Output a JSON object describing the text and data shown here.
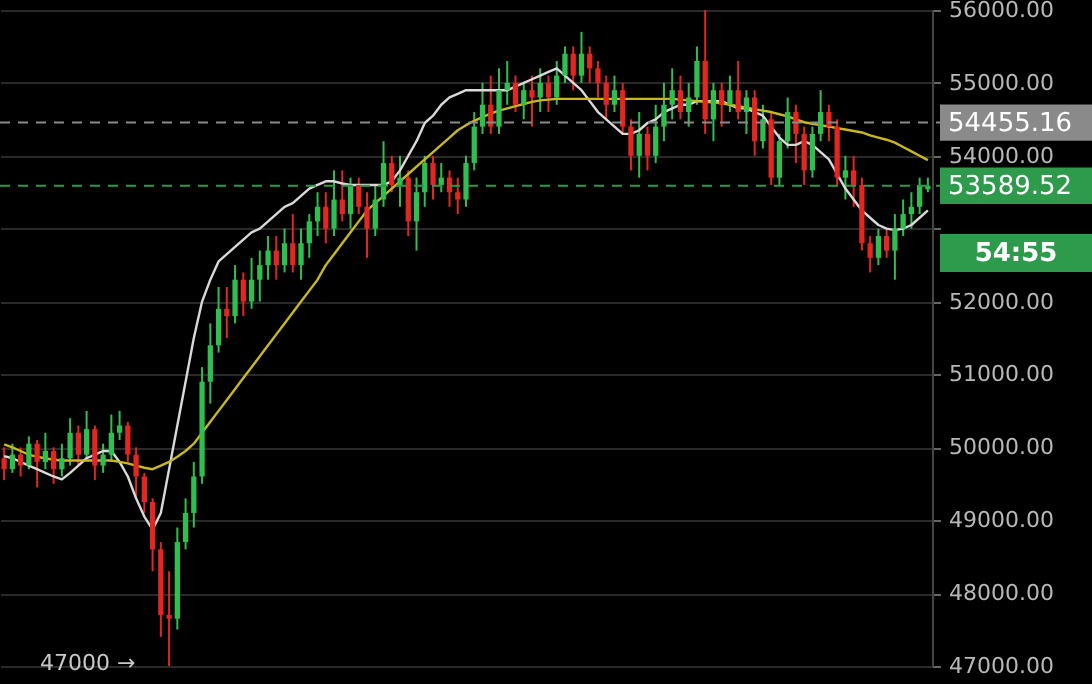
{
  "chart_data": {
    "type": "candlestick",
    "categories": [
      null,
      null,
      null,
      null,
      null,
      null,
      null,
      null,
      null,
      null,
      null,
      null,
      null,
      null,
      null,
      null,
      null,
      null,
      null,
      null,
      null,
      null,
      null,
      null,
      null,
      null,
      null,
      null,
      null,
      null,
      null,
      null,
      null,
      null,
      null,
      null,
      null,
      null,
      null,
      null,
      null,
      null,
      null,
      null,
      null,
      null,
      null,
      null,
      null,
      null,
      null,
      null,
      null,
      null,
      null,
      null,
      null,
      null,
      null,
      null,
      null,
      null,
      null,
      null,
      null,
      null,
      null,
      null,
      null,
      null,
      null,
      null,
      null,
      null,
      null,
      null,
      null,
      null,
      null,
      null,
      null,
      null,
      null,
      null,
      null,
      null,
      null,
      null,
      null,
      null,
      null,
      null,
      null,
      null,
      null,
      null,
      null,
      null,
      null,
      null,
      null,
      null,
      null,
      null,
      null,
      null,
      null,
      null,
      null,
      null,
      null,
      null,
      null
    ],
    "ohlc": [
      [
        49850,
        50000,
        49550,
        49700
      ],
      [
        49700,
        50050,
        49650,
        49900
      ],
      [
        49900,
        50000,
        49600,
        49750
      ],
      [
        49750,
        50150,
        49700,
        50050
      ],
      [
        50050,
        50100,
        49450,
        49800
      ],
      [
        49800,
        50200,
        49700,
        49950
      ],
      [
        49950,
        50000,
        49500,
        49700
      ],
      [
        49700,
        50050,
        49600,
        49850
      ],
      [
        49850,
        50400,
        49750,
        50200
      ],
      [
        50200,
        50300,
        49750,
        49900
      ],
      [
        49900,
        50500,
        49850,
        50250
      ],
      [
        50250,
        50300,
        49550,
        49750
      ],
      [
        49750,
        50050,
        49650,
        49900
      ],
      [
        49900,
        50450,
        49800,
        50200
      ],
      [
        50200,
        50500,
        50100,
        50300
      ],
      [
        50300,
        50350,
        49800,
        49900
      ],
      [
        49900,
        50000,
        49300,
        49600
      ],
      [
        49600,
        49650,
        49100,
        49250
      ],
      [
        49250,
        49300,
        48300,
        48600
      ],
      [
        48600,
        48700,
        47400,
        47700
      ],
      [
        47700,
        48300,
        47000,
        47650
      ],
      [
        47650,
        48900,
        47500,
        48700
      ],
      [
        48700,
        49300,
        48600,
        49100
      ],
      [
        49100,
        49800,
        48900,
        49600
      ],
      [
        49600,
        51100,
        49500,
        50900
      ],
      [
        50900,
        51700,
        50600,
        51400
      ],
      [
        51400,
        52200,
        51300,
        51900
      ],
      [
        51900,
        52200,
        51500,
        51800
      ],
      [
        51800,
        52500,
        51700,
        52300
      ],
      [
        52300,
        52400,
        51800,
        52000
      ],
      [
        52000,
        52600,
        51900,
        52300
      ],
      [
        52300,
        52700,
        52000,
        52500
      ],
      [
        52500,
        52900,
        52300,
        52700
      ],
      [
        52700,
        52900,
        52300,
        52500
      ],
      [
        52500,
        53000,
        52400,
        52800
      ],
      [
        52800,
        53200,
        52400,
        52500
      ],
      [
        52500,
        53000,
        52300,
        52800
      ],
      [
        52800,
        53200,
        52600,
        53100
      ],
      [
        53100,
        53500,
        52900,
        53300
      ],
      [
        53300,
        53500,
        52800,
        53000
      ],
      [
        53000,
        53800,
        52900,
        53400
      ],
      [
        53400,
        53800,
        53100,
        53200
      ],
      [
        53200,
        53700,
        53000,
        53600
      ],
      [
        53600,
        53700,
        53200,
        53300
      ],
      [
        53300,
        53500,
        52600,
        53000
      ],
      [
        53000,
        53600,
        52900,
        53400
      ],
      [
        53400,
        54200,
        53300,
        53900
      ],
      [
        53900,
        54000,
        53500,
        53600
      ],
      [
        53600,
        54000,
        53300,
        53700
      ],
      [
        53700,
        53800,
        52900,
        53100
      ],
      [
        53100,
        53700,
        52700,
        53500
      ],
      [
        53500,
        54000,
        53300,
        53900
      ],
      [
        53900,
        54000,
        53400,
        53600
      ],
      [
        53600,
        53900,
        53500,
        53700
      ],
      [
        53700,
        53800,
        53300,
        53500
      ],
      [
        53500,
        53700,
        53200,
        53400
      ],
      [
        53400,
        54000,
        53300,
        53900
      ],
      [
        53900,
        54600,
        53800,
        54400
      ],
      [
        54400,
        55000,
        54300,
        54700
      ],
      [
        54700,
        55100,
        54300,
        54400
      ],
      [
        54400,
        55200,
        54300,
        54900
      ],
      [
        54900,
        55300,
        54700,
        55000
      ],
      [
        55000,
        55100,
        54600,
        54700
      ],
      [
        54700,
        55000,
        54500,
        54900
      ],
      [
        54900,
        55100,
        54400,
        54800
      ],
      [
        54800,
        55200,
        54600,
        55000
      ],
      [
        55000,
        55100,
        54600,
        54800
      ],
      [
        54800,
        55300,
        54700,
        55100
      ],
      [
        55100,
        55500,
        55000,
        55400
      ],
      [
        55400,
        55500,
        54900,
        55100
      ],
      [
        55100,
        55700,
        55000,
        55400
      ],
      [
        55400,
        55500,
        55000,
        55200
      ],
      [
        55200,
        55300,
        54800,
        55000
      ],
      [
        55000,
        55100,
        54500,
        54700
      ],
      [
        54700,
        55100,
        54600,
        54900
      ],
      [
        54900,
        55000,
        54300,
        54400
      ],
      [
        54400,
        54500,
        53800,
        54000
      ],
      [
        54000,
        54600,
        53700,
        54300
      ],
      [
        54300,
        54400,
        53800,
        54000
      ],
      [
        54000,
        54700,
        53900,
        54400
      ],
      [
        54400,
        55000,
        54200,
        54700
      ],
      [
        54700,
        55200,
        54500,
        54900
      ],
      [
        54900,
        55100,
        54500,
        54600
      ],
      [
        54600,
        55000,
        54400,
        54800
      ],
      [
        54800,
        55500,
        54700,
        55300
      ],
      [
        55300,
        56000,
        54300,
        54500
      ],
      [
        54500,
        55000,
        54200,
        54900
      ],
      [
        54900,
        55000,
        54400,
        54700
      ],
      [
        54700,
        55100,
        54600,
        54900
      ],
      [
        54900,
        55300,
        54500,
        54600
      ],
      [
        54600,
        54900,
        54300,
        54800
      ],
      [
        54800,
        54900,
        54000,
        54200
      ],
      [
        54200,
        54700,
        54100,
        54500
      ],
      [
        54500,
        54600,
        53600,
        53700
      ],
      [
        53700,
        54300,
        53600,
        54200
      ],
      [
        54200,
        54800,
        54100,
        54600
      ],
      [
        54600,
        54700,
        53900,
        54300
      ],
      [
        54300,
        54400,
        53600,
        53800
      ],
      [
        53800,
        54400,
        53700,
        54300
      ],
      [
        54300,
        54900,
        54200,
        54600
      ],
      [
        54600,
        54700,
        54200,
        54400
      ],
      [
        54400,
        54500,
        53600,
        53700
      ],
      [
        53700,
        54000,
        53400,
        53800
      ],
      [
        53800,
        54000,
        53300,
        53600
      ],
      [
        53600,
        53700,
        52700,
        52800
      ],
      [
        52800,
        52900,
        52400,
        52600
      ],
      [
        52600,
        53000,
        52500,
        52900
      ],
      [
        52900,
        53000,
        52600,
        52700
      ],
      [
        52700,
        53200,
        52300,
        53000
      ],
      [
        53000,
        53400,
        52900,
        53200
      ],
      [
        53200,
        53500,
        53000,
        53300
      ],
      [
        53300,
        53700,
        53200,
        53600
      ],
      [
        53540,
        53700,
        53500,
        53590
      ]
    ],
    "series": [
      {
        "type": "line",
        "color": "#d9d9d9",
        "values": [
          49880,
          49850,
          49800,
          49750,
          49700,
          49650,
          49600,
          49560,
          49650,
          49750,
          49850,
          49900,
          49950,
          49950,
          49800,
          49600,
          49300,
          49050,
          48870,
          49100,
          49700,
          50300,
          50900,
          51500,
          52000,
          52300,
          52550,
          52650,
          52750,
          52850,
          52950,
          53000,
          53100,
          53200,
          53300,
          53350,
          53450,
          53550,
          53600,
          53650,
          53650,
          53620,
          53600,
          53600,
          53600,
          53600,
          53600,
          53650,
          53800,
          54000,
          54200,
          54450,
          54550,
          54700,
          54800,
          54850,
          54900,
          54900,
          54900,
          54900,
          54900,
          54900,
          54950,
          55000,
          55050,
          55100,
          55150,
          55200,
          55100,
          55000,
          54900,
          54750,
          54600,
          54500,
          54400,
          54300,
          54300,
          54350,
          54450,
          54500,
          54600,
          54650,
          54700,
          54700,
          54750,
          54750,
          54750,
          54750,
          54700,
          54650,
          54650,
          54600,
          54550,
          54400,
          54250,
          54150,
          54150,
          54200,
          54150,
          54050,
          53950,
          53750,
          53550,
          53400,
          53250,
          53150,
          53050,
          53000,
          52980,
          53000,
          53050,
          53150,
          53250
        ]
      },
      {
        "type": "line",
        "color": "#c9b81c",
        "values": [
          50040,
          50000,
          49950,
          49900,
          49870,
          49850,
          49830,
          49820,
          49820,
          49820,
          49820,
          49820,
          49820,
          49820,
          49800,
          49780,
          49750,
          49720,
          49700,
          49750,
          49800,
          49870,
          49950,
          50050,
          50200,
          50350,
          50500,
          50650,
          50800,
          50950,
          51100,
          51250,
          51400,
          51550,
          51700,
          51850,
          52000,
          52150,
          52300,
          52500,
          52650,
          52800,
          52950,
          53100,
          53250,
          53350,
          53450,
          53550,
          53650,
          53750,
          53850,
          53950,
          54050,
          54150,
          54250,
          54350,
          54420,
          54480,
          54530,
          54580,
          54620,
          54650,
          54680,
          54710,
          54740,
          54760,
          54770,
          54780,
          54780,
          54780,
          54780,
          54780,
          54780,
          54780,
          54780,
          54780,
          54780,
          54780,
          54780,
          54780,
          54780,
          54780,
          54770,
          54760,
          54750,
          54740,
          54730,
          54720,
          54700,
          54680,
          54660,
          54640,
          54620,
          54600,
          54570,
          54540,
          54500,
          54460,
          54440,
          54420,
          54400,
          54380,
          54360,
          54340,
          54320,
          54280,
          54250,
          54220,
          54180,
          54120,
          54060,
          54000,
          53940
        ]
      }
    ],
    "ylim": [
      47000,
      56000
    ],
    "yticks": [
      {
        "value": 47000,
        "label": "47000.00"
      },
      {
        "value": 48000,
        "label": "48000.00"
      },
      {
        "value": 49000,
        "label": "49000.00"
      },
      {
        "value": 50000,
        "label": "50000.00"
      },
      {
        "value": 51000,
        "label": "51000.00"
      },
      {
        "value": 52000,
        "label": "52000.00"
      },
      {
        "value": 53000,
        "label": null
      },
      {
        "value": 54000,
        "label": "54000.00"
      },
      {
        "value": 55000,
        "label": "55000.00"
      },
      {
        "value": 56000,
        "label": "56000.00"
      }
    ],
    "grid": "y",
    "ref_lines": [
      {
        "axis": "y",
        "value": 54455.16,
        "label": "54455.16",
        "color": "#8a8a8a",
        "line_style": "dashed"
      },
      {
        "axis": "y",
        "value": 53589.52,
        "label": "53589.52",
        "color": "#2e9a4c",
        "line_style": "dashed"
      }
    ],
    "annotations": [
      "47000 →",
      "54:55"
    ]
  }
}
